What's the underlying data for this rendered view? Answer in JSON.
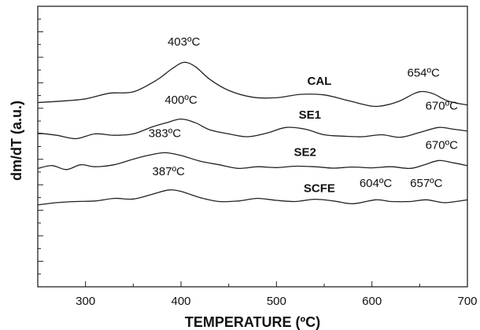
{
  "chart_data": {
    "type": "line",
    "title": "",
    "xlabel": "TEMPERATURE (ºC)",
    "ylabel": "dm/dT (a.u.)",
    "xlim": [
      250,
      700
    ],
    "xticks": [
      "300",
      "400",
      "500",
      "600",
      "700"
    ],
    "ylim": [
      0,
      1
    ],
    "yticks_labeled": false,
    "grid": false,
    "line_color": "#222222",
    "series": [
      {
        "name": "CAL",
        "x": [
          250,
          275,
          300,
          325,
          350,
          375,
          390,
          403,
          415,
          430,
          450,
          475,
          500,
          525,
          550,
          575,
          600,
          615,
          630,
          645,
          654,
          665,
          680,
          700
        ],
        "y": [
          0.657,
          0.662,
          0.67,
          0.69,
          0.695,
          0.738,
          0.776,
          0.8,
          0.785,
          0.74,
          0.7,
          0.676,
          0.674,
          0.686,
          0.684,
          0.664,
          0.644,
          0.648,
          0.664,
          0.69,
          0.696,
          0.687,
          0.662,
          0.648
        ]
      },
      {
        "name": "SE1",
        "x": [
          250,
          270,
          290,
          310,
          330,
          350,
          370,
          385,
          400,
          415,
          430,
          450,
          470,
          490,
          510,
          530,
          550,
          570,
          590,
          610,
          630,
          650,
          670,
          685,
          700
        ],
        "y": [
          0.548,
          0.54,
          0.528,
          0.545,
          0.54,
          0.545,
          0.57,
          0.585,
          0.598,
          0.585,
          0.56,
          0.545,
          0.535,
          0.548,
          0.568,
          0.562,
          0.542,
          0.537,
          0.535,
          0.542,
          0.533,
          0.55,
          0.568,
          0.562,
          0.555
        ]
      },
      {
        "name": "SE2",
        "x": [
          250,
          265,
          280,
          295,
          310,
          330,
          350,
          365,
          383,
          400,
          420,
          440,
          460,
          480,
          500,
          520,
          540,
          560,
          580,
          600,
          620,
          640,
          655,
          670,
          685,
          700
        ],
        "y": [
          0.422,
          0.432,
          0.418,
          0.435,
          0.428,
          0.435,
          0.455,
          0.468,
          0.478,
          0.468,
          0.448,
          0.435,
          0.422,
          0.428,
          0.425,
          0.43,
          0.428,
          0.423,
          0.427,
          0.424,
          0.428,
          0.422,
          0.435,
          0.45,
          0.442,
          0.432
        ]
      },
      {
        "name": "SCFE",
        "x": [
          250,
          270,
          290,
          310,
          330,
          350,
          370,
          387,
          400,
          420,
          440,
          460,
          480,
          500,
          520,
          540,
          560,
          580,
          604,
          620,
          640,
          657,
          675,
          690,
          700
        ],
        "y": [
          0.292,
          0.3,
          0.304,
          0.306,
          0.315,
          0.313,
          0.33,
          0.345,
          0.34,
          0.318,
          0.304,
          0.306,
          0.315,
          0.308,
          0.304,
          0.312,
          0.306,
          0.296,
          0.31,
          0.304,
          0.304,
          0.31,
          0.3,
          0.305,
          0.31
        ]
      }
    ],
    "annotations": [
      {
        "text": "403ºC",
        "x": 403,
        "y": 0.86
      },
      {
        "text": "654ºC",
        "x": 654,
        "y": 0.75
      },
      {
        "text": "400ºC",
        "x": 400,
        "y": 0.652
      },
      {
        "text": "670ºC",
        "x": 673,
        "y": 0.632
      },
      {
        "text": "383ºC",
        "x": 383,
        "y": 0.534
      },
      {
        "text": "670ºC",
        "x": 673,
        "y": 0.492
      },
      {
        "text": "387ºC",
        "x": 387,
        "y": 0.398
      },
      {
        "text": "604ºC",
        "x": 604,
        "y": 0.356
      },
      {
        "text": "657ºC",
        "x": 657,
        "y": 0.356
      }
    ],
    "series_label_positions": [
      {
        "name": "CAL",
        "x": 545,
        "y": 0.72
      },
      {
        "name": "SE1",
        "x": 535,
        "y": 0.6
      },
      {
        "name": "SE2",
        "x": 530,
        "y": 0.467
      },
      {
        "name": "SCFE",
        "x": 545,
        "y": 0.337
      }
    ]
  }
}
